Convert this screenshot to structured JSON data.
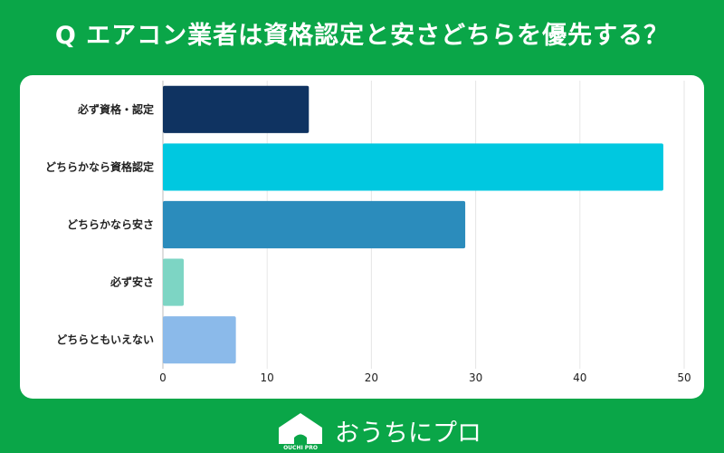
{
  "title": "Q エアコン業者は資格認定と安さどちらを優先する？",
  "chart_data": {
    "type": "bar",
    "orientation": "horizontal",
    "categories": [
      "必ず資格・認定",
      "どちらかなら資格認定",
      "どちらかなら安さ",
      "必ず安さ",
      "どちらともいえない"
    ],
    "values": [
      14,
      48,
      29,
      2,
      7
    ],
    "colors": [
      "#0f3361",
      "#00c8e0",
      "#2b8cbc",
      "#7dd5c4",
      "#8bbaea"
    ],
    "xlim": [
      0,
      50
    ],
    "xticks": [
      0,
      10,
      20,
      30,
      40,
      50
    ],
    "grid": true
  },
  "logo": {
    "mark_text": "OUCHI PRO",
    "brand_name": "おうちにプロ"
  }
}
